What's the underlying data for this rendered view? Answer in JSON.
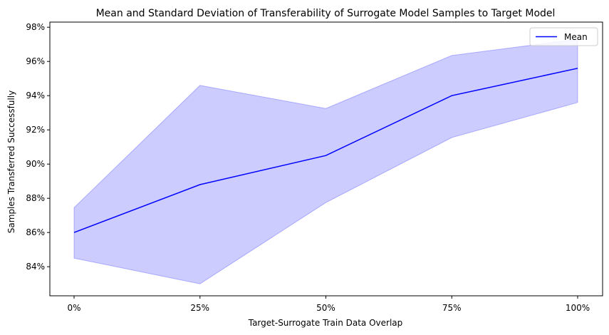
{
  "chart_data": {
    "type": "line",
    "title": "Mean and Standard Deviation of Transferability of Surrogate Model Samples to Target Model",
    "xlabel": "Target-Surrogate Train Data Overlap",
    "ylabel": "Samples Transferred Successfully",
    "categories": [
      "0%",
      "25%",
      "50%",
      "75%",
      "100%"
    ],
    "series": [
      {
        "name": "Mean",
        "values": [
          86.0,
          88.8,
          90.5,
          94.0,
          95.6
        ],
        "color": "#0000ff"
      }
    ],
    "band": {
      "lower": [
        84.5,
        83.0,
        87.75,
        91.55,
        93.6
      ],
      "upper": [
        87.45,
        94.6,
        93.25,
        96.35,
        97.3
      ],
      "color": "#0000ff",
      "opacity": 0.2
    },
    "yticks": [
      "84%",
      "86%",
      "88%",
      "90%",
      "92%",
      "94%",
      "96%",
      "98%"
    ],
    "ytick_values": [
      84,
      86,
      88,
      90,
      92,
      94,
      96,
      98
    ],
    "ylim": [
      82.3,
      98.3
    ],
    "grid": false,
    "legend_position": "top-right"
  }
}
